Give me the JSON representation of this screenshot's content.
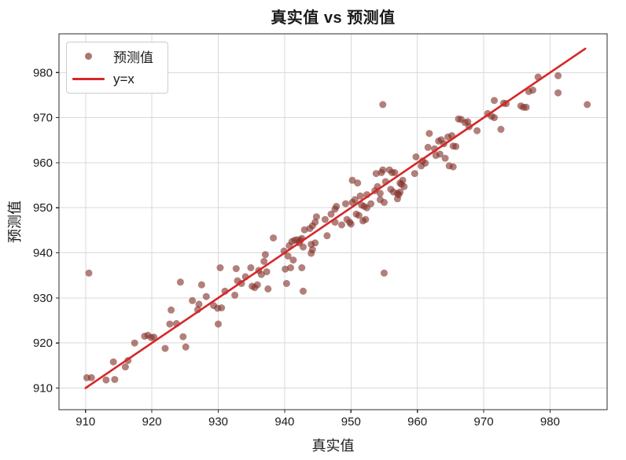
{
  "title": "真实值 vs 预测值",
  "chart_data": {
    "type": "scatter",
    "title": "真实值 vs 预测值",
    "xlabel": "真实值",
    "ylabel": "预测值",
    "xlim": [
      906,
      988.6
    ],
    "ylim": [
      905.2,
      988.6
    ],
    "xticks": [
      910,
      920,
      930,
      940,
      950,
      960,
      970,
      980
    ],
    "yticks": [
      910,
      920,
      930,
      940,
      950,
      960,
      970,
      980
    ],
    "grid": true,
    "legend": {
      "position": "upper left",
      "entries": [
        {
          "label": "预测值",
          "type": "scatter"
        },
        {
          "label": "y=x",
          "type": "line"
        }
      ]
    },
    "series": [
      {
        "name": "预测值",
        "type": "scatter",
        "color": "#82322a",
        "opacity": 0.62,
        "marker_radius": 4.5,
        "points": [
          [
            910.2,
            912.3
          ],
          [
            910.5,
            935.5
          ],
          [
            910.9,
            912.3
          ],
          [
            913.1,
            911.8
          ],
          [
            914.2,
            915.8
          ],
          [
            914.4,
            911.9
          ],
          [
            916.0,
            914.7
          ],
          [
            916.4,
            916.1
          ],
          [
            917.4,
            920.0
          ],
          [
            918.9,
            921.5
          ],
          [
            919.4,
            921.7
          ],
          [
            919.9,
            921.2
          ],
          [
            920.3,
            921.3
          ],
          [
            922.0,
            918.8
          ],
          [
            922.7,
            924.2
          ],
          [
            922.9,
            927.3
          ],
          [
            923.7,
            924.3
          ],
          [
            924.3,
            933.5
          ],
          [
            924.7,
            921.4
          ],
          [
            925.1,
            919.1
          ],
          [
            926.1,
            929.4
          ],
          [
            926.9,
            927.4
          ],
          [
            927.1,
            928.6
          ],
          [
            927.5,
            932.9
          ],
          [
            928.2,
            930.3
          ],
          [
            929.3,
            928.3
          ],
          [
            929.9,
            927.7
          ],
          [
            930.0,
            924.2
          ],
          [
            930.3,
            936.7
          ],
          [
            930.5,
            927.8
          ],
          [
            931.0,
            931.5
          ],
          [
            932.5,
            930.6
          ],
          [
            932.7,
            936.5
          ],
          [
            932.9,
            933.8
          ],
          [
            933.5,
            933.2
          ],
          [
            934.1,
            934.7
          ],
          [
            934.9,
            936.7
          ],
          [
            935.1,
            932.6
          ],
          [
            935.5,
            932.3
          ],
          [
            935.9,
            932.9
          ],
          [
            936.1,
            936.1
          ],
          [
            936.5,
            935.2
          ],
          [
            936.9,
            938.1
          ],
          [
            937.1,
            939.6
          ],
          [
            937.3,
            935.8
          ],
          [
            937.5,
            932.0
          ],
          [
            938.3,
            943.3
          ],
          [
            939.9,
            940.4
          ],
          [
            940.1,
            936.4
          ],
          [
            940.3,
            933.2
          ],
          [
            940.5,
            939.3
          ],
          [
            940.7,
            941.6
          ],
          [
            940.9,
            936.7
          ],
          [
            941.1,
            942.5
          ],
          [
            941.3,
            938.4
          ],
          [
            941.5,
            942.8
          ],
          [
            941.9,
            942.9
          ],
          [
            942.2,
            942.2
          ],
          [
            942.4,
            942.8
          ],
          [
            942.6,
            936.7
          ],
          [
            942.6,
            943.2
          ],
          [
            942.8,
            941.3
          ],
          [
            942.8,
            931.5
          ],
          [
            943.0,
            945.1
          ],
          [
            943.8,
            945.4
          ],
          [
            944.0,
            941.9
          ],
          [
            944.0,
            939.9
          ],
          [
            944.2,
            940.7
          ],
          [
            944.2,
            946.0
          ],
          [
            944.6,
            942.2
          ],
          [
            944.6,
            946.8
          ],
          [
            944.8,
            948.0
          ],
          [
            946.1,
            947.4
          ],
          [
            946.4,
            943.8
          ],
          [
            947.0,
            948.6
          ],
          [
            947.6,
            946.8
          ],
          [
            947.6,
            949.7
          ],
          [
            947.8,
            950.3
          ],
          [
            948.6,
            946.2
          ],
          [
            949.2,
            950.9
          ],
          [
            949.4,
            947.4
          ],
          [
            949.8,
            946.8
          ],
          [
            950.0,
            946.4
          ],
          [
            950.2,
            951.2
          ],
          [
            950.2,
            956.1
          ],
          [
            950.6,
            951.8
          ],
          [
            950.8,
            948.6
          ],
          [
            951.0,
            955.5
          ],
          [
            951.2,
            948.3
          ],
          [
            951.4,
            952.6
          ],
          [
            951.6,
            950.6
          ],
          [
            951.8,
            947.1
          ],
          [
            952.0,
            950.3
          ],
          [
            952.2,
            947.4
          ],
          [
            952.4,
            950.0
          ],
          [
            952.4,
            952.9
          ],
          [
            953.0,
            950.9
          ],
          [
            953.6,
            953.8
          ],
          [
            953.8,
            957.6
          ],
          [
            954.0,
            954.7
          ],
          [
            954.4,
            951.8
          ],
          [
            954.4,
            953.2
          ],
          [
            954.6,
            957.8
          ],
          [
            954.8,
            958.4
          ],
          [
            954.8,
            972.9
          ],
          [
            955.0,
            935.5
          ],
          [
            955.0,
            951.2
          ],
          [
            955.2,
            955.8
          ],
          [
            955.8,
            958.4
          ],
          [
            956.0,
            954.1
          ],
          [
            956.2,
            957.8
          ],
          [
            956.4,
            953.5
          ],
          [
            956.6,
            957.8
          ],
          [
            957.0,
            953.2
          ],
          [
            957.0,
            952.0
          ],
          [
            957.2,
            952.9
          ],
          [
            957.4,
            953.5
          ],
          [
            957.4,
            955.5
          ],
          [
            957.6,
            955.2
          ],
          [
            957.8,
            956.1
          ],
          [
            958.0,
            954.7
          ],
          [
            959.6,
            957.6
          ],
          [
            959.8,
            961.3
          ],
          [
            960.6,
            959.3
          ],
          [
            960.8,
            960.4
          ],
          [
            961.2,
            959.9
          ],
          [
            961.6,
            963.4
          ],
          [
            961.8,
            966.5
          ],
          [
            962.6,
            963.1
          ],
          [
            962.8,
            961.6
          ],
          [
            963.2,
            964.8
          ],
          [
            963.4,
            961.9
          ],
          [
            963.6,
            965.1
          ],
          [
            964.0,
            964.2
          ],
          [
            964.2,
            961.0
          ],
          [
            964.6,
            965.7
          ],
          [
            964.8,
            959.3
          ],
          [
            965.2,
            966.0
          ],
          [
            965.4,
            963.7
          ],
          [
            965.4,
            959.1
          ],
          [
            965.8,
            963.6
          ],
          [
            966.2,
            969.7
          ],
          [
            966.6,
            969.6
          ],
          [
            967.2,
            968.9
          ],
          [
            967.6,
            969.1
          ],
          [
            967.8,
            968.0
          ],
          [
            969.0,
            967.1
          ],
          [
            970.6,
            970.9
          ],
          [
            971.2,
            970.3
          ],
          [
            971.6,
            970.0
          ],
          [
            971.6,
            973.8
          ],
          [
            972.6,
            967.4
          ],
          [
            973.0,
            973.2
          ],
          [
            973.4,
            973.1
          ],
          [
            975.6,
            972.6
          ],
          [
            976.0,
            972.3
          ],
          [
            976.4,
            972.3
          ],
          [
            976.8,
            975.8
          ],
          [
            977.4,
            976.1
          ],
          [
            978.2,
            979.0
          ],
          [
            981.2,
            975.5
          ],
          [
            981.2,
            979.3
          ],
          [
            985.6,
            972.9
          ]
        ]
      },
      {
        "name": "y=x",
        "type": "line",
        "color": "#d62728",
        "width": 2.6,
        "from": [
          910,
          910
        ],
        "to": [
          985.3,
          985.3
        ]
      }
    ],
    "style": {
      "grid_color": "#d9d9d9",
      "spine_color": "#2b2b2b",
      "tick_label_color": "#1a1a1a",
      "background": "#ffffff"
    }
  }
}
